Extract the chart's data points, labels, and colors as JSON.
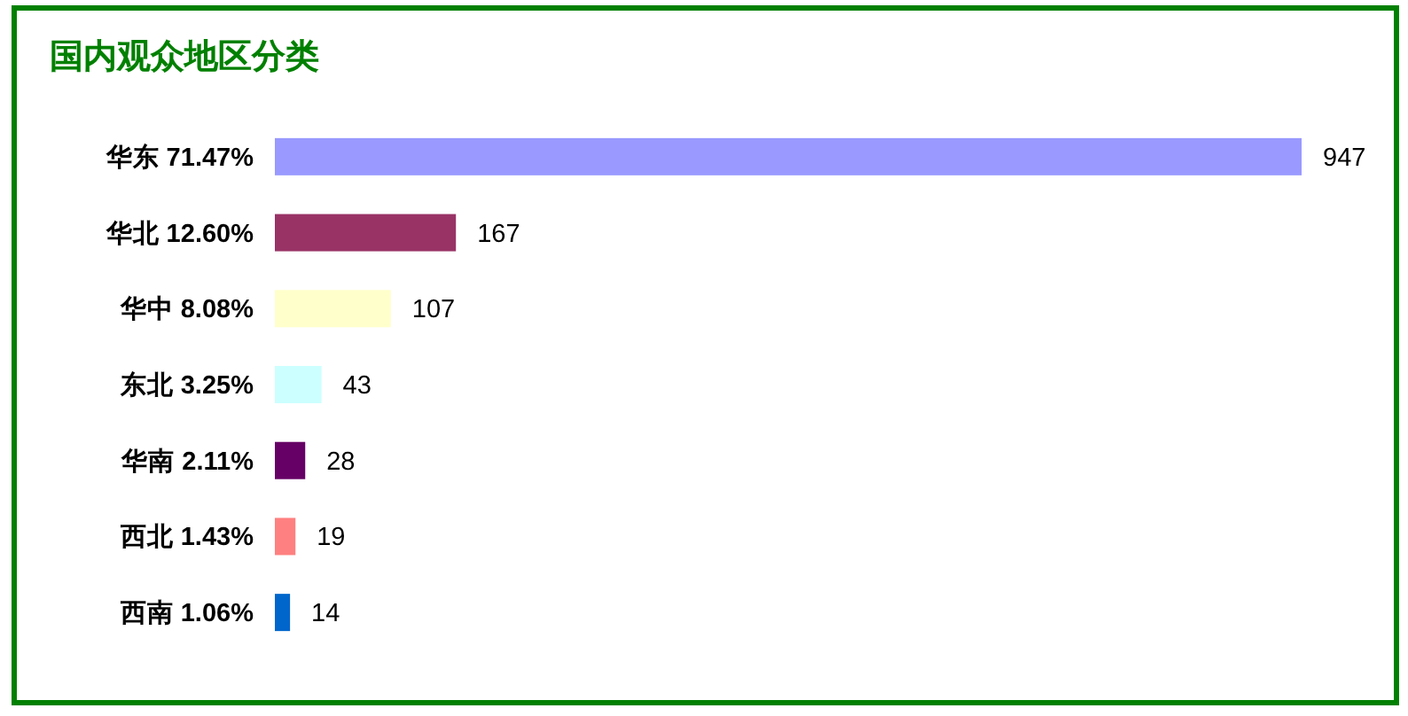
{
  "chart_data": {
    "type": "bar",
    "orientation": "horizontal",
    "title": "国内观众地区分类",
    "categories": [
      "华东 71.47%",
      "华北 12.60%",
      "华中 8.08%",
      "东北 3.25%",
      "华南 2.11%",
      "西北 1.43%",
      "西南 1.06%"
    ],
    "values": [
      947,
      167,
      107,
      43,
      28,
      19,
      14
    ],
    "colors": [
      "#9999ff",
      "#993366",
      "#ffffcc",
      "#ccffff",
      "#660066",
      "#ff8080",
      "#0066cc"
    ],
    "data_labels": true
  }
}
